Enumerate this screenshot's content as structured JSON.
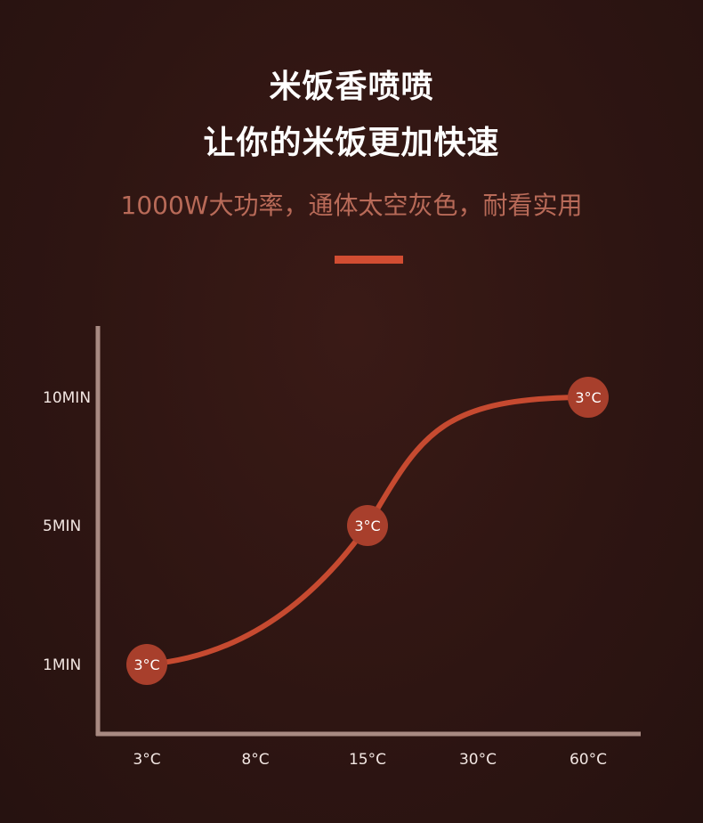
{
  "header": {
    "title_line1": "米饭香喷喷",
    "title_line2": "让你的米饭更加快速",
    "subtitle": "1000W大功率，通体太空灰色，耐看实用"
  },
  "colors": {
    "background": "#2e1512",
    "accent": "#d24d32",
    "curve": "#c64a30",
    "marker": "#a83f2c",
    "axis": "#a88a82",
    "subtitle": "#b86a58"
  },
  "chart_data": {
    "type": "line",
    "title": "",
    "xlabel": "",
    "ylabel": "",
    "categories": [
      "3°C",
      "8°C",
      "15°C",
      "30°C",
      "60°C"
    ],
    "y_ticks": [
      {
        "label": "1MIN",
        "value": 1
      },
      {
        "label": "5MIN",
        "value": 5
      },
      {
        "label": "10MIN",
        "value": 10
      }
    ],
    "points": [
      {
        "category_index": 0,
        "y": 1,
        "label": "3°C"
      },
      {
        "category_index": 2,
        "y": 5,
        "label": "3°C"
      },
      {
        "category_index": 4,
        "y": 10,
        "label": "3°C"
      }
    ],
    "grid": false,
    "legend": "none"
  }
}
